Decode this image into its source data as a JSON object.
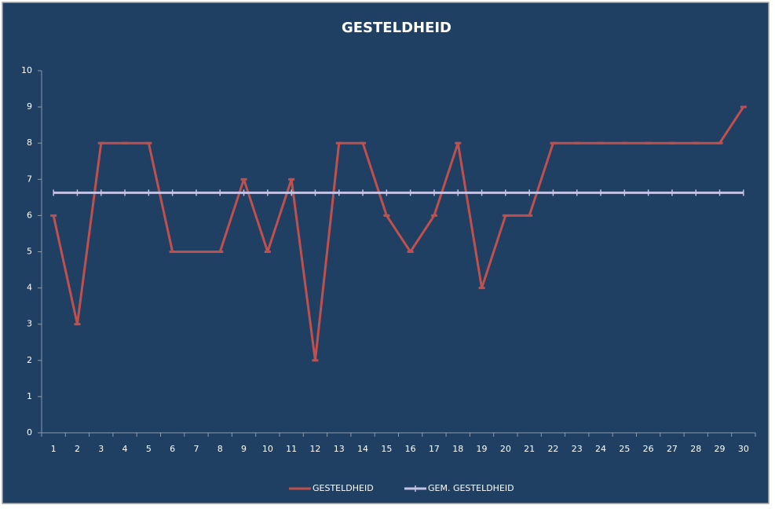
{
  "chart_data": {
    "type": "line",
    "title": "GESTELDHEID",
    "categories": [
      "1",
      "2",
      "3",
      "4",
      "5",
      "6",
      "7",
      "8",
      "9",
      "10",
      "11",
      "12",
      "13",
      "14",
      "15",
      "16",
      "17",
      "18",
      "19",
      "20",
      "21",
      "22",
      "23",
      "24",
      "25",
      "26",
      "27",
      "28",
      "29",
      "30"
    ],
    "series": [
      {
        "name": "GESTELDHEID",
        "color": "#c0504d",
        "marker": "dash",
        "values": [
          6,
          3,
          8,
          8,
          8,
          5,
          5,
          5,
          7,
          5,
          7,
          2,
          8,
          8,
          6,
          5,
          6,
          8,
          4,
          6,
          6,
          8,
          8,
          8,
          8,
          8,
          8,
          8,
          8,
          9
        ]
      },
      {
        "name": "GEM. GESTELDHEID",
        "color": "#c3c3e6",
        "marker": "plus",
        "values": [
          6.63,
          6.63,
          6.63,
          6.63,
          6.63,
          6.63,
          6.63,
          6.63,
          6.63,
          6.63,
          6.63,
          6.63,
          6.63,
          6.63,
          6.63,
          6.63,
          6.63,
          6.63,
          6.63,
          6.63,
          6.63,
          6.63,
          6.63,
          6.63,
          6.63,
          6.63,
          6.63,
          6.63,
          6.63,
          6.63
        ]
      }
    ],
    "ylim": [
      0,
      10
    ],
    "yticks": [
      0,
      1,
      2,
      3,
      4,
      5,
      6,
      7,
      8,
      9,
      10
    ],
    "grid": false,
    "legend": "bottom"
  }
}
